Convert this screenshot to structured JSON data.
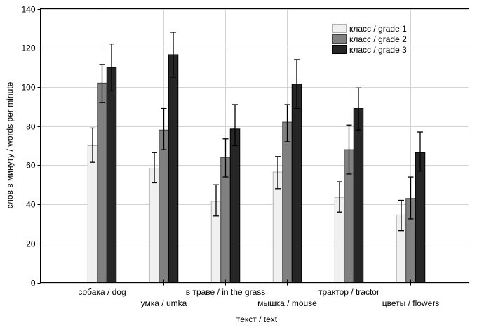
{
  "chart_data": {
    "type": "bar",
    "title": "",
    "xlabel": "текст / text",
    "ylabel": "слов в минуту / words per minute",
    "ylim": [
      0,
      140
    ],
    "yticks": [
      0,
      20,
      40,
      60,
      80,
      100,
      120,
      140
    ],
    "grid": true,
    "legend_position": "top-right",
    "categories": [
      "собака / dog",
      "умка / umka",
      "в траве / in the grass",
      "мышка / mouse",
      "трактор / tractor",
      "цветы / flowers"
    ],
    "series": [
      {
        "name": "класс / grade 1",
        "color": "#f0f0f0",
        "stroke": "#b0b0b0",
        "values": [
          70,
          58.5,
          41.5,
          56.5,
          43.5,
          34.5
        ],
        "err_low": [
          61.5,
          51,
          34,
          48,
          36,
          26.5
        ],
        "err_high": [
          79,
          66.5,
          50,
          64.5,
          51.5,
          42
        ]
      },
      {
        "name": "класс / grade 2",
        "color": "#808080",
        "stroke": "#404040",
        "values": [
          102,
          78,
          64,
          82,
          68,
          43
        ],
        "err_low": [
          92,
          68,
          54,
          72,
          55.5,
          32.5
        ],
        "err_high": [
          111.5,
          89,
          73.5,
          91,
          80.5,
          54
        ]
      },
      {
        "name": "класс / grade 3",
        "color": "#262626",
        "stroke": "#000000",
        "values": [
          110,
          116.5,
          78.5,
          101.5,
          89,
          66.5
        ],
        "err_low": [
          98,
          105,
          70,
          89,
          78,
          57
        ],
        "err_high": [
          122,
          128,
          91,
          114,
          99.5,
          77
        ]
      }
    ]
  }
}
